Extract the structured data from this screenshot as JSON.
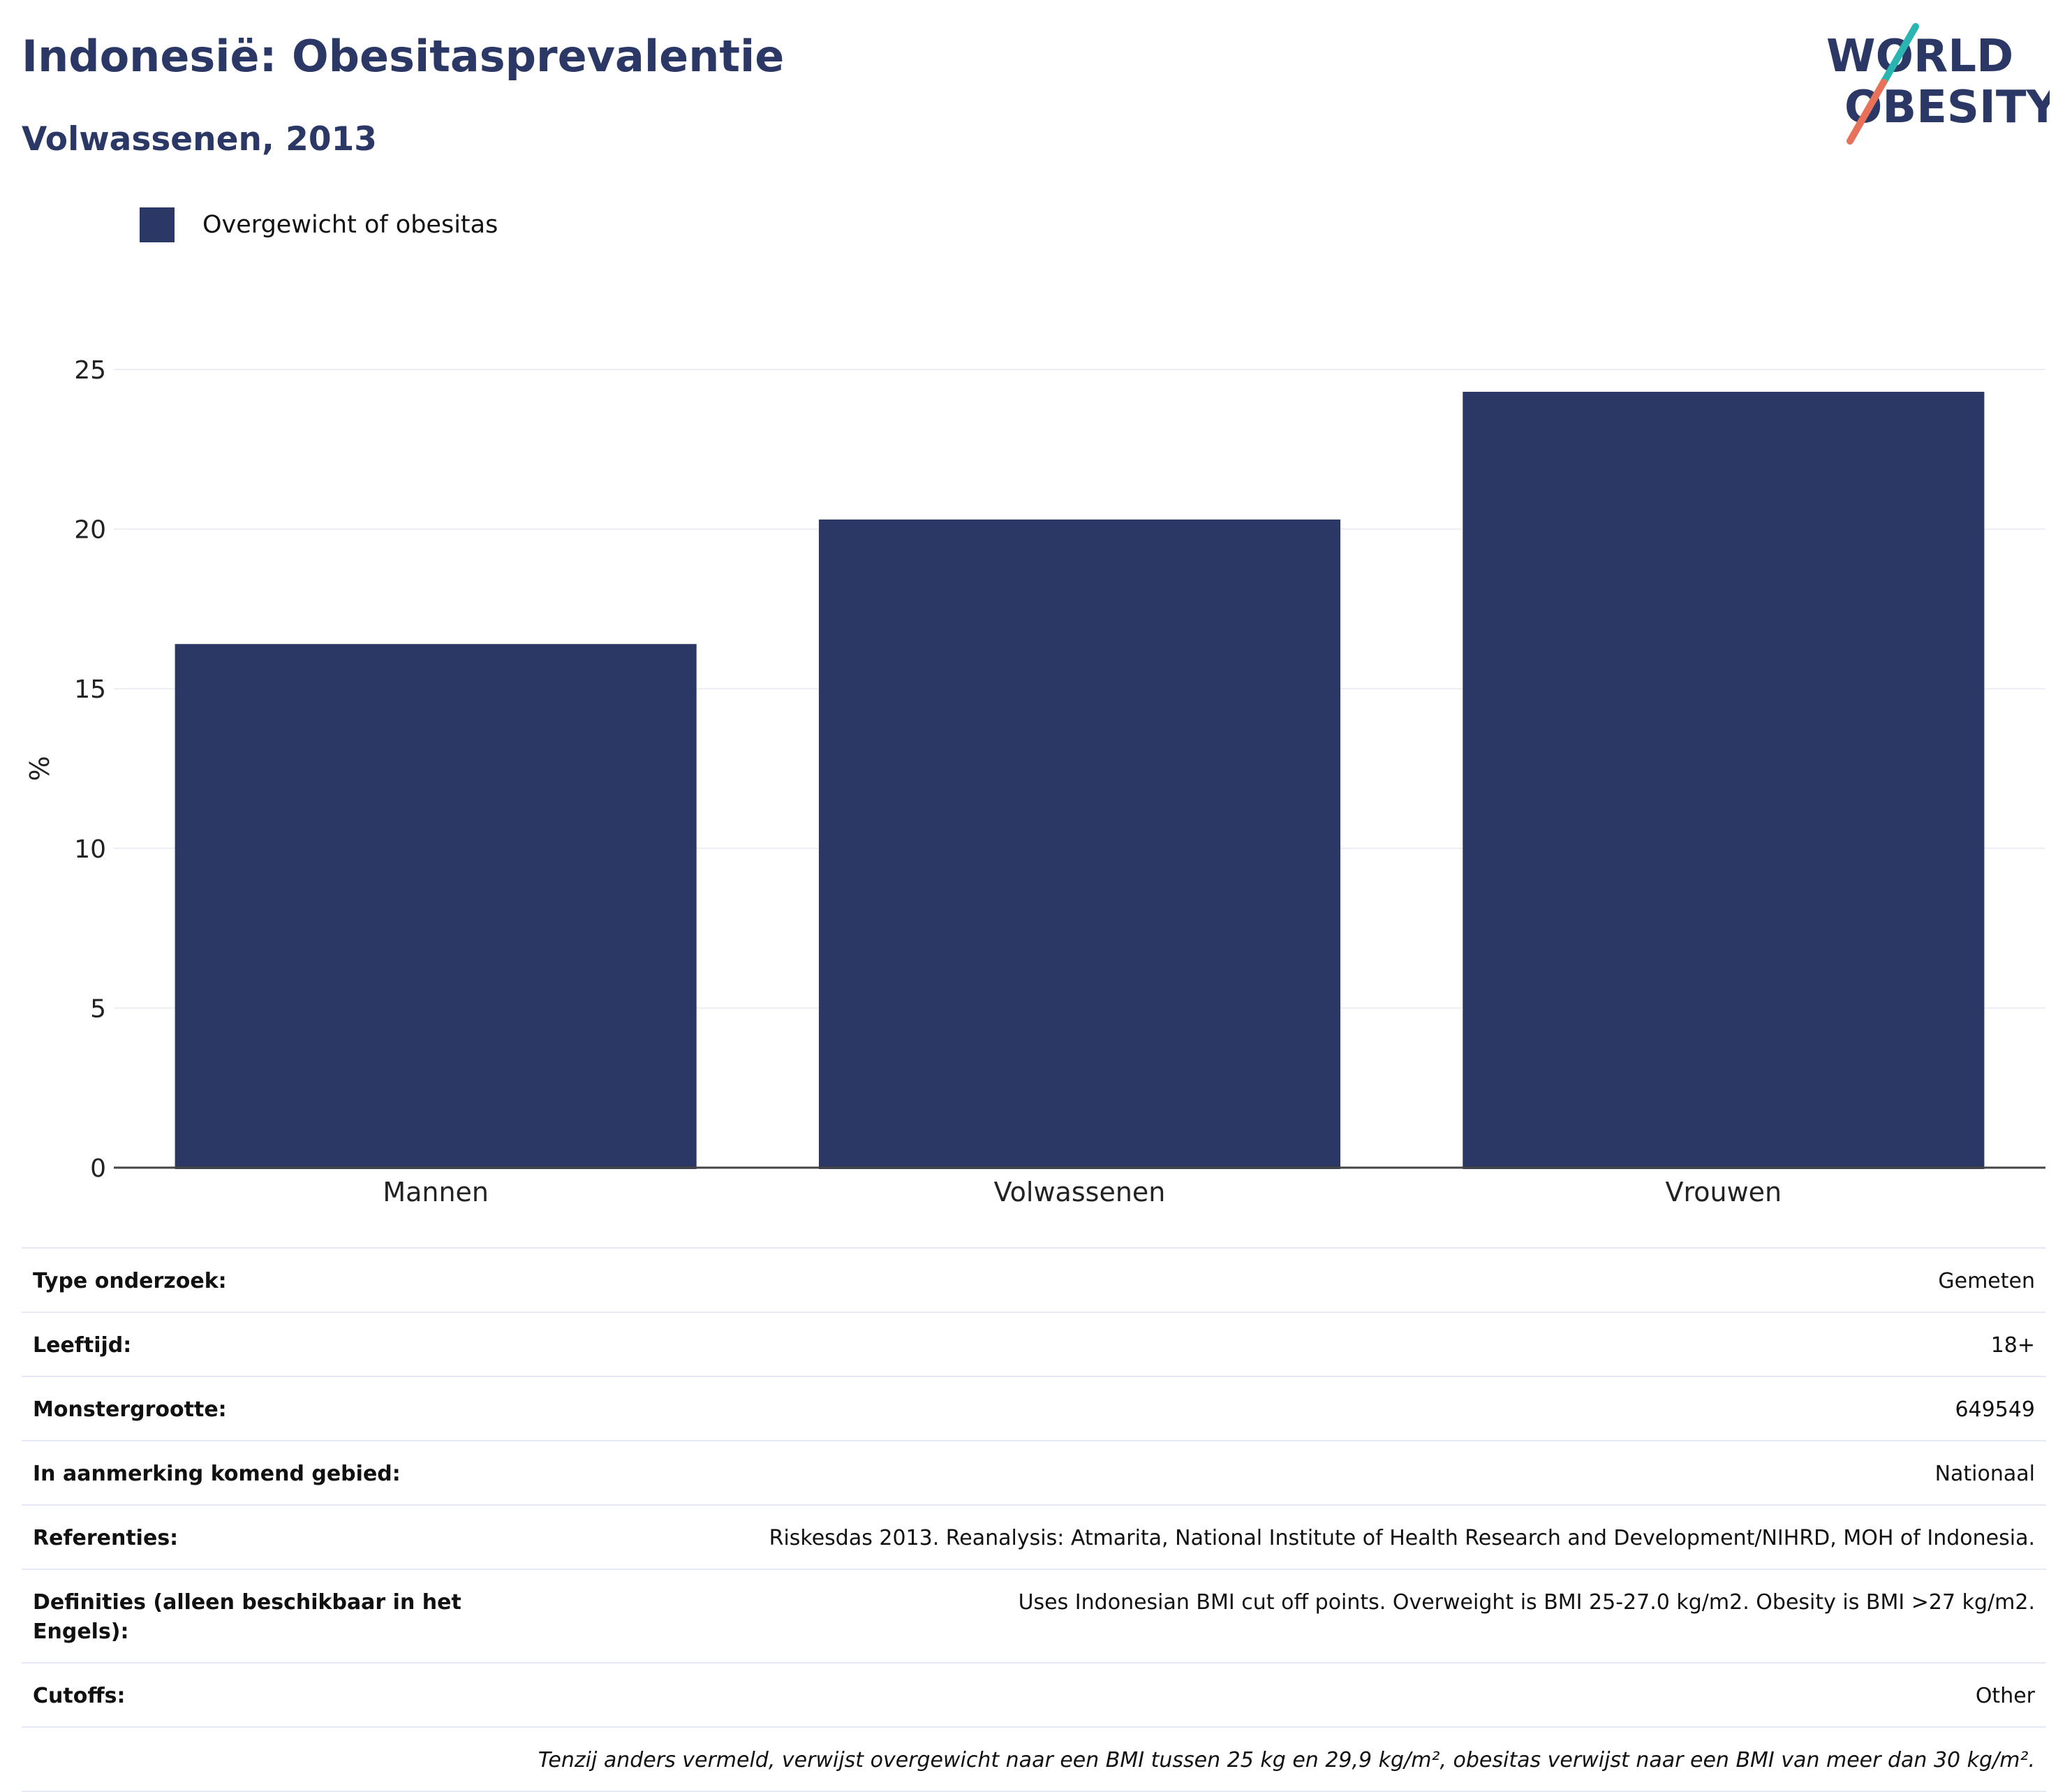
{
  "header": {
    "title": "Indonesië: Obesitasprevalentie",
    "subtitle": "Volwassenen, 2013"
  },
  "logo": {
    "line1": "WORLD",
    "line2": "OBESITY",
    "text_color": "#2b3865",
    "accent_teal": "#2bb5b0",
    "accent_coral": "#e8715a"
  },
  "chart_data": {
    "type": "bar",
    "categories": [
      "Mannen",
      "Volwassenen",
      "Vrouwen"
    ],
    "series": [
      {
        "name": "Overgewicht of obesitas",
        "values": [
          16.4,
          20.3,
          24.3
        ],
        "color": "#2b3865"
      }
    ],
    "ylabel": "%",
    "ylim": [
      0,
      25
    ],
    "yticks": [
      0,
      5,
      10,
      15,
      20,
      25
    ],
    "grid": true,
    "legend_position": "top-left"
  },
  "details": {
    "rows": [
      {
        "label": "Type onderzoek:",
        "value": "Gemeten"
      },
      {
        "label": "Leeftijd:",
        "value": "18+"
      },
      {
        "label": "Monstergrootte:",
        "value": "649549"
      },
      {
        "label": "In aanmerking komend gebied:",
        "value": "Nationaal"
      },
      {
        "label": "Referenties:",
        "value": "Riskesdas 2013. Reanalysis: Atmarita, National Institute of Health Research and Development/NIHRD, MOH of Indonesia."
      },
      {
        "label": "Definities (alleen beschikbaar in het Engels):",
        "value": "Uses Indonesian BMI cut off points. Overweight is BMI 25-27.0 kg/m2. Obesity is BMI >27 kg/m2."
      },
      {
        "label": "Cutoffs:",
        "value": "Other"
      }
    ],
    "note": "Tenzij anders vermeld, verwijst overgewicht naar een BMI tussen 25 kg en 29,9 kg/m², obesitas verwijst naar een BMI van meer dan 30 kg/m²."
  }
}
